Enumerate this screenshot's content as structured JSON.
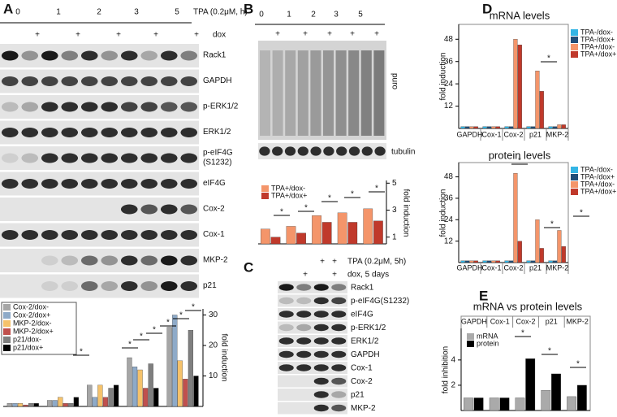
{
  "panel_labels": [
    "A",
    "B",
    "C",
    "D",
    "E"
  ],
  "blot_A": {
    "timepoints": [
      "0",
      "1",
      "2",
      "3",
      "5"
    ],
    "treatment": "TPA (0.2μM, h)",
    "dox_marks": [
      "+",
      "+",
      "+",
      "+",
      "+"
    ],
    "dox": "dox",
    "proteins": [
      "Rack1",
      "GAPDH",
      "p-ERK1/2",
      "ERK1/2",
      [
        "p-eIF4G",
        "(S1232)"
      ],
      "eIF4G",
      "Cox-2",
      "Cox-1",
      "MKP-2",
      "p21"
    ]
  },
  "blot_B": {
    "timepoints": [
      "0",
      "1",
      "2",
      "3",
      "5"
    ],
    "dox_marks": [
      "+",
      "+",
      "+",
      "+",
      "+"
    ],
    "proteins": [
      "puro",
      "tubulin"
    ]
  },
  "blot_C": {
    "tpa_marks": [
      "+",
      "+"
    ],
    "treatment": "TPA (0.2μM, 5h)",
    "dox_marks": [
      "+",
      "+"
    ],
    "dox": "dox, 5 days",
    "proteins": [
      "Rack1",
      "p-eIF4G(S1232)",
      "eIF4G",
      "p-ERK1/2",
      "ERK1/2",
      "GAPDH",
      "Cox-1",
      "Cox-2",
      "p21",
      "MKP-2"
    ]
  },
  "chart_data": [
    {
      "type": "bar",
      "ylabel": "fold induction",
      "categories": [
        null,
        null,
        null,
        null,
        null
      ],
      "ylim": [
        0,
        32
      ],
      "yticks": [
        10,
        20,
        30
      ],
      "legend": "upper left",
      "series": [
        {
          "name": "Cox-2/dox-",
          "color": "#a6a6a6",
          "values": [
            1,
            2,
            7,
            16,
            26
          ]
        },
        {
          "name": "Cox-2/dox+",
          "color": "#8eaac8",
          "values": [
            1,
            2,
            3,
            13,
            30
          ]
        },
        {
          "name": "MKP-2/dox-",
          "color": "#f5c26b",
          "values": [
            1,
            3,
            7,
            12,
            15
          ]
        },
        {
          "name": "MKP-2/dox+",
          "color": "#c0504d",
          "values": [
            0.5,
            1,
            3,
            6,
            9
          ]
        },
        {
          "name": "p21/dox-",
          "color": "#7f7f7f",
          "values": [
            1,
            1,
            6,
            14,
            25
          ]
        },
        {
          "name": "p21/dox+",
          "color": "#000000",
          "values": [
            1,
            3,
            7,
            6,
            10
          ]
        }
      ],
      "significance": [
        "*",
        "*",
        "*",
        "*",
        "*",
        "*",
        "*"
      ]
    },
    {
      "type": "bar",
      "ylabel": "fold induction",
      "categories": [
        null,
        null,
        null,
        null,
        null
      ],
      "ylim": [
        0.5,
        5.2
      ],
      "yticks": [
        1,
        3,
        5
      ],
      "legend": "upper left",
      "series": [
        {
          "name": "TPA+/dox-",
          "color": "#f4956a",
          "values": [
            1.6,
            1.8,
            2.6,
            2.8,
            3.1
          ]
        },
        {
          "name": "TPA+/dox+",
          "color": "#c0392b",
          "values": [
            1.0,
            1.3,
            2.1,
            2.1,
            2.2
          ]
        }
      ],
      "significance": [
        "*",
        "*",
        "*",
        "*",
        "*"
      ]
    },
    {
      "type": "bar",
      "title": "mRNA levels",
      "ylabel": "fold induction",
      "categories": [
        "GAPDH",
        "Cox-1",
        "Cox-2",
        "p21",
        "MKP-2"
      ],
      "ylim": [
        0,
        56
      ],
      "yticks": [
        12,
        24,
        36,
        48
      ],
      "legend": "upper right",
      "series": [
        {
          "name": "TPA-/dox-",
          "color": "#33b5e5",
          "values": [
            1,
            1,
            1,
            1,
            1
          ]
        },
        {
          "name": "TPA-/dox+",
          "color": "#1f4e79",
          "values": [
            1,
            1,
            1,
            1,
            1
          ]
        },
        {
          "name": "TPA+/dox-",
          "color": "#f4956a",
          "values": [
            1,
            1,
            48,
            31,
            2
          ]
        },
        {
          "name": "TPA+/dox+",
          "color": "#c0392b",
          "values": [
            1,
            1,
            45,
            20,
            2
          ]
        }
      ],
      "significance": [
        "*"
      ]
    },
    {
      "type": "bar",
      "title": "protein levels",
      "ylabel": "fold induction",
      "categories": [
        "GAPDH",
        "Cox-1",
        "Cox-2",
        "p21",
        "MKP-2"
      ],
      "ylim": [
        0,
        56
      ],
      "yticks": [
        12,
        24,
        36,
        48
      ],
      "legend": "upper right",
      "series": [
        {
          "name": "TPA-/dox-",
          "color": "#33b5e5",
          "values": [
            1,
            1,
            1,
            1,
            1
          ]
        },
        {
          "name": "TPA-/dox+",
          "color": "#1f4e79",
          "values": [
            1,
            1,
            1,
            1,
            1
          ]
        },
        {
          "name": "TPA+/dox-",
          "color": "#f4956a",
          "values": [
            1,
            1,
            50,
            24,
            18
          ]
        },
        {
          "name": "TPA+/dox+",
          "color": "#c0392b",
          "values": [
            1,
            1,
            12,
            8,
            9
          ]
        }
      ],
      "significance": [
        "*",
        "*",
        "*"
      ]
    },
    {
      "type": "bar",
      "title": "mRNA vs protein levels",
      "ylabel": "fold inhibition",
      "categories": [
        "GAPDH",
        "Cox-1",
        "Cox-2",
        "p21",
        "MKP-2"
      ],
      "ylim": [
        0,
        6.5
      ],
      "yticks": [
        2,
        4
      ],
      "legend": "upper left",
      "series": [
        {
          "name": "mRNA",
          "color": "#aaaaaa",
          "values": [
            1,
            1,
            1,
            1.6,
            1.1
          ]
        },
        {
          "name": "protein",
          "color": "#000000",
          "values": [
            1,
            1,
            4.1,
            2.9,
            2.0
          ]
        }
      ],
      "significance": [
        "*",
        "*",
        "*"
      ]
    }
  ]
}
